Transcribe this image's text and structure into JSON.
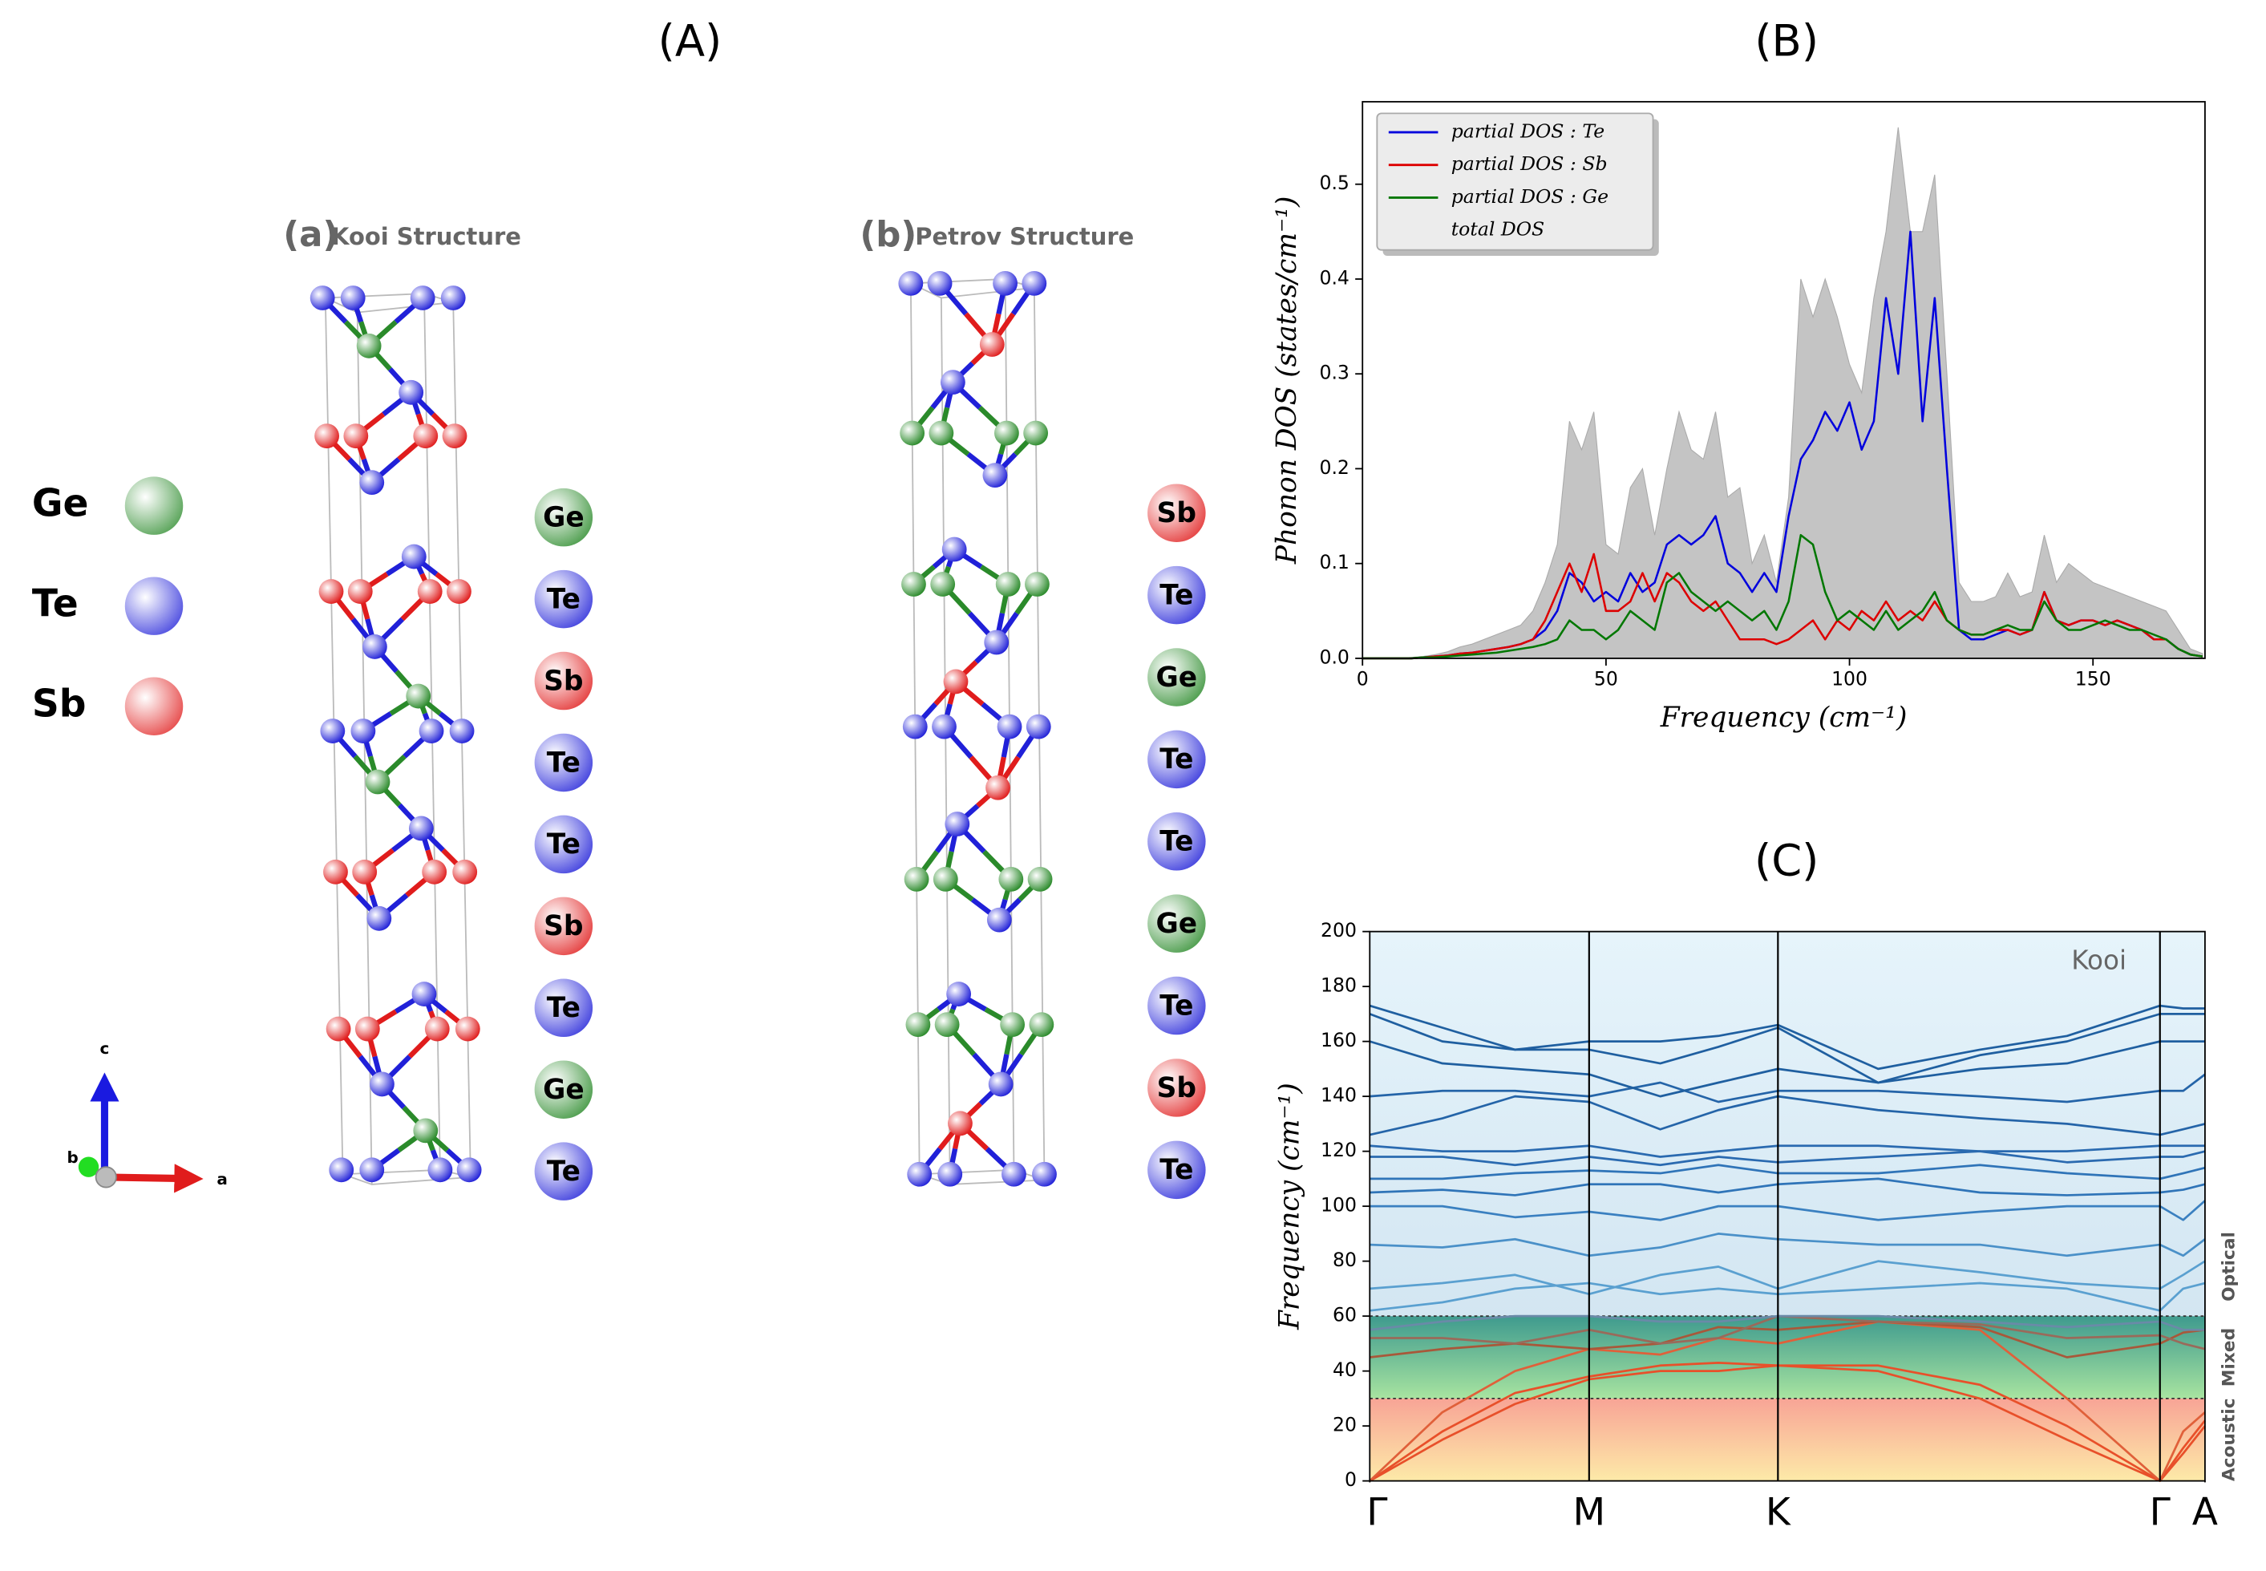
{
  "labels": {
    "A": "(A)",
    "B": "(B)",
    "C": "(C)"
  },
  "structures": {
    "elements": [
      {
        "name": "Ge",
        "color": "#2a8a2a"
      },
      {
        "name": "Te",
        "color": "#2020d8"
      },
      {
        "name": "Sb",
        "color": "#e01c1c"
      }
    ],
    "kooi": {
      "tag": "(a)",
      "title": "Kooi Structure",
      "stacking": [
        "Ge",
        "Te",
        "Sb",
        "Te",
        "Te",
        "Sb",
        "Te",
        "Ge",
        "Te"
      ]
    },
    "petrov": {
      "tag": "(b)",
      "title": "Petrov Structure",
      "stacking": [
        "Sb",
        "Te",
        "Ge",
        "Te",
        "Te",
        "Ge",
        "Te",
        "Sb",
        "Te"
      ]
    },
    "axes": {
      "c": "c",
      "b": "b",
      "a": "a"
    }
  },
  "chart_data": [
    {
      "type": "line",
      "xlabel": "Frequency (cm⁻¹)",
      "ylabel": "Phonon DOS (states/cm⁻¹)",
      "xlim": [
        0,
        173
      ],
      "xticks": [
        0,
        50,
        100,
        150
      ],
      "ylim": [
        0,
        0.587
      ],
      "yticks": [
        {
          "value": 0,
          "label": "0.0"
        },
        0.1,
        0.2,
        0.3,
        0.4,
        0.5
      ],
      "legend": "upper left",
      "x": [
        0,
        2.5,
        5,
        7.5,
        10,
        12.5,
        15,
        17.5,
        20,
        22.5,
        25,
        27.5,
        30,
        32.5,
        35,
        37.5,
        40,
        42.5,
        45,
        47.5,
        50,
        52.5,
        55,
        57.5,
        60,
        62.5,
        65,
        67.5,
        70,
        72.5,
        75,
        77.5,
        80,
        82.5,
        85,
        87.5,
        90,
        92.5,
        95,
        97.5,
        100,
        102.5,
        105,
        107.5,
        110,
        112.5,
        115,
        117.5,
        120,
        122.5,
        125,
        127.5,
        130,
        132.5,
        135,
        137.5,
        140,
        142.5,
        145,
        147.5,
        150,
        152.5,
        155,
        157.5,
        160,
        162.5,
        165,
        167.5,
        170,
        172.5
      ],
      "series": [
        {
          "name": "partial DOS : Te",
          "color": "#0000dd",
          "values": [
            0,
            0,
            0,
            0,
            0,
            0.001,
            0.002,
            0.003,
            0.005,
            0.006,
            0.008,
            0.01,
            0.012,
            0.015,
            0.02,
            0.03,
            0.05,
            0.09,
            0.08,
            0.06,
            0.07,
            0.06,
            0.09,
            0.07,
            0.08,
            0.12,
            0.13,
            0.12,
            0.13,
            0.15,
            0.1,
            0.09,
            0.07,
            0.09,
            0.07,
            0.15,
            0.21,
            0.23,
            0.26,
            0.24,
            0.27,
            0.22,
            0.25,
            0.38,
            0.3,
            0.45,
            0.25,
            0.38,
            0.2,
            0.03,
            0.02,
            0.02,
            0.025,
            0.03,
            0.025,
            0.03,
            0.07,
            0.04,
            0.035,
            0.04,
            0.04,
            0.035,
            0.04,
            0.035,
            0.03,
            0.02,
            0.02,
            0.01,
            0.004,
            0.002
          ]
        },
        {
          "name": "partial DOS : Sb",
          "color": "#dd0000",
          "values": [
            0,
            0,
            0,
            0,
            0,
            0.001,
            0.002,
            0.003,
            0.005,
            0.006,
            0.008,
            0.01,
            0.012,
            0.015,
            0.02,
            0.04,
            0.07,
            0.1,
            0.07,
            0.11,
            0.05,
            0.05,
            0.06,
            0.09,
            0.06,
            0.09,
            0.08,
            0.06,
            0.05,
            0.06,
            0.04,
            0.02,
            0.02,
            0.02,
            0.015,
            0.02,
            0.03,
            0.04,
            0.02,
            0.04,
            0.03,
            0.05,
            0.04,
            0.06,
            0.04,
            0.05,
            0.04,
            0.06,
            0.04,
            0.03,
            0.025,
            0.025,
            0.03,
            0.03,
            0.025,
            0.03,
            0.07,
            0.04,
            0.035,
            0.04,
            0.04,
            0.035,
            0.04,
            0.035,
            0.03,
            0.02,
            0.02,
            0.01,
            0.004,
            0.002
          ]
        },
        {
          "name": "partial DOS : Ge",
          "color": "#007700",
          "values": [
            0,
            0,
            0,
            0,
            0,
            0.001,
            0.001,
            0.002,
            0.003,
            0.004,
            0.005,
            0.006,
            0.008,
            0.01,
            0.012,
            0.015,
            0.02,
            0.04,
            0.03,
            0.03,
            0.02,
            0.03,
            0.05,
            0.04,
            0.03,
            0.08,
            0.09,
            0.07,
            0.06,
            0.05,
            0.06,
            0.05,
            0.04,
            0.05,
            0.03,
            0.06,
            0.13,
            0.12,
            0.07,
            0.04,
            0.05,
            0.04,
            0.03,
            0.05,
            0.03,
            0.04,
            0.05,
            0.07,
            0.04,
            0.03,
            0.025,
            0.025,
            0.03,
            0.035,
            0.03,
            0.03,
            0.06,
            0.04,
            0.03,
            0.03,
            0.035,
            0.04,
            0.035,
            0.03,
            0.03,
            0.025,
            0.02,
            0.01,
            0.004,
            0.002
          ]
        },
        {
          "name": "total DOS",
          "color": "#c4c4c4",
          "fill": true,
          "values": [
            0,
            0,
            0,
            0,
            0.001,
            0.002,
            0.004,
            0.007,
            0.012,
            0.015,
            0.02,
            0.025,
            0.03,
            0.035,
            0.05,
            0.08,
            0.12,
            0.25,
            0.22,
            0.26,
            0.12,
            0.11,
            0.18,
            0.2,
            0.13,
            0.2,
            0.26,
            0.22,
            0.21,
            0.26,
            0.17,
            0.18,
            0.1,
            0.13,
            0.08,
            0.17,
            0.4,
            0.36,
            0.4,
            0.36,
            0.31,
            0.28,
            0.38,
            0.45,
            0.56,
            0.45,
            0.45,
            0.51,
            0.3,
            0.08,
            0.06,
            0.06,
            0.065,
            0.09,
            0.065,
            0.07,
            0.13,
            0.08,
            0.1,
            0.09,
            0.08,
            0.075,
            0.07,
            0.065,
            0.06,
            0.055,
            0.05,
            0.03,
            0.01,
            0.005
          ]
        }
      ]
    },
    {
      "type": "line",
      "ylabel": "Frequency (cm⁻¹)",
      "annotation": "Kooi",
      "x": [
        0,
        0.5,
        1.0,
        1.51,
        2.0,
        2.4,
        2.81,
        3.5,
        4.2,
        4.8,
        5.44,
        5.6,
        5.75
      ],
      "xlim": [
        0,
        5.75
      ],
      "xticks": [
        {
          "value": 0,
          "label": "Γ"
        },
        {
          "value": 1.51,
          "label": "M"
        },
        {
          "value": 2.81,
          "label": "K"
        },
        {
          "value": 5.44,
          "label": "Γ"
        },
        {
          "value": 5.75,
          "label": "A"
        }
      ],
      "ylim": [
        0,
        200
      ],
      "yticks": [
        0,
        20,
        40,
        60,
        80,
        100,
        120,
        140,
        160,
        180,
        200
      ],
      "regions": [
        {
          "name": "Acoustic",
          "range": [
            0,
            30
          ],
          "colors": [
            "#f8a496",
            "#fdeaa8"
          ]
        },
        {
          "name": "Mixed",
          "range": [
            30,
            60
          ],
          "colors": [
            "#3e9a8e",
            "#a8e4a0"
          ]
        },
        {
          "name": "Optical",
          "range": [
            60,
            200
          ],
          "colors": [
            "#e6f4fb",
            "#d3e6f2"
          ]
        }
      ],
      "series": [
        {
          "color": "#e8502a",
          "values": [
            0,
            15,
            28,
            37,
            40,
            40,
            42,
            40,
            30,
            15,
            0,
            10,
            20
          ]
        },
        {
          "color": "#e8502a",
          "values": [
            0,
            18,
            32,
            38,
            42,
            43,
            42,
            42,
            35,
            20,
            0,
            12,
            22
          ]
        },
        {
          "color": "#e0603a",
          "values": [
            0,
            25,
            40,
            48,
            46,
            52,
            50,
            58,
            55,
            30,
            0,
            18,
            25
          ]
        },
        {
          "color": "#a8583a",
          "values": [
            45,
            48,
            50,
            48,
            50,
            56,
            55,
            58,
            56,
            45,
            50,
            54,
            55
          ]
        },
        {
          "color": "#9a6a5a",
          "values": [
            52,
            52,
            50,
            55,
            50,
            52,
            60,
            58,
            57,
            52,
            53,
            50,
            48
          ]
        },
        {
          "color": "#6a8aa8",
          "values": [
            55,
            58,
            60,
            60,
            58,
            58,
            60,
            60,
            58,
            56,
            58,
            55,
            55
          ]
        },
        {
          "color": "#5aa0d0",
          "values": [
            62,
            65,
            70,
            72,
            68,
            70,
            68,
            70,
            72,
            70,
            62,
            70,
            72
          ]
        },
        {
          "color": "#5aa0d0",
          "values": [
            70,
            72,
            75,
            68,
            75,
            78,
            70,
            80,
            76,
            72,
            70,
            75,
            80
          ]
        },
        {
          "color": "#4a90c8",
          "values": [
            86,
            85,
            88,
            82,
            85,
            90,
            88,
            86,
            86,
            82,
            86,
            82,
            88
          ]
        },
        {
          "color": "#3a80c0",
          "values": [
            100,
            100,
            96,
            98,
            95,
            100,
            100,
            95,
            98,
            100,
            100,
            95,
            102
          ]
        },
        {
          "color": "#2f74b8",
          "values": [
            105,
            106,
            104,
            108,
            108,
            105,
            108,
            110,
            105,
            104,
            105,
            106,
            108
          ]
        },
        {
          "color": "#2f74b8",
          "values": [
            110,
            110,
            112,
            113,
            112,
            115,
            112,
            112,
            115,
            112,
            110,
            112,
            114
          ]
        },
        {
          "color": "#2a6ab0",
          "values": [
            118,
            118,
            115,
            118,
            115,
            118,
            116,
            118,
            120,
            116,
            118,
            118,
            120
          ]
        },
        {
          "color": "#2a6ab0",
          "values": [
            122,
            120,
            120,
            122,
            118,
            120,
            122,
            122,
            120,
            120,
            122,
            122,
            122
          ]
        },
        {
          "color": "#2464a8",
          "values": [
            126,
            132,
            140,
            138,
            128,
            135,
            140,
            135,
            132,
            130,
            126,
            128,
            130
          ]
        },
        {
          "color": "#2464a8",
          "values": [
            140,
            142,
            142,
            140,
            145,
            138,
            142,
            142,
            140,
            138,
            142,
            142,
            148
          ]
        },
        {
          "color": "#1f5fa0",
          "values": [
            160,
            152,
            150,
            148,
            140,
            145,
            150,
            145,
            150,
            152,
            160,
            160,
            160
          ]
        },
        {
          "color": "#1f5fa0",
          "values": [
            170,
            160,
            157,
            157,
            152,
            158,
            165,
            145,
            155,
            160,
            170,
            170,
            170
          ]
        },
        {
          "color": "#1f5fa0",
          "values": [
            173,
            165,
            157,
            160,
            160,
            162,
            166,
            150,
            157,
            162,
            173,
            172,
            172
          ]
        }
      ]
    }
  ]
}
